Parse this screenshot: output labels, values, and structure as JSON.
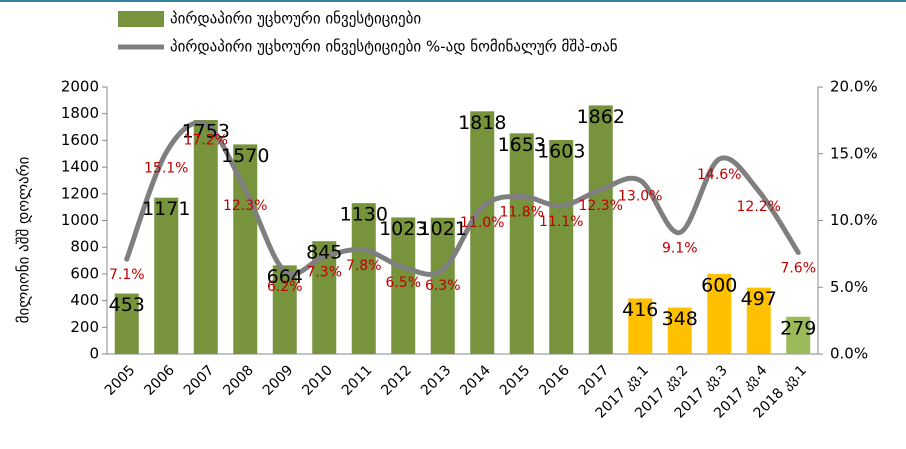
{
  "chart_data": {
    "type": "bar-line",
    "legend": "top",
    "y_label": "მილიონი აშშ დოლარი",
    "categories": [
      "2005",
      "2006",
      "2007",
      "2008",
      "2009",
      "2010",
      "2011",
      "2012",
      "2013",
      "2014",
      "2015",
      "2016",
      "2017",
      "2017 კვ.1",
      "2017 კვ.2",
      "2017 კვ.3",
      "2017 კვ.4",
      "2018 კვ.1"
    ],
    "series": [
      {
        "name": "პირდაპირი უცხოური ინვესტიციები",
        "type": "bar",
        "color": "#77933c",
        "colors": [
          "#77933c",
          "#77933c",
          "#77933c",
          "#77933c",
          "#77933c",
          "#77933c",
          "#77933c",
          "#77933c",
          "#77933c",
          "#77933c",
          "#77933c",
          "#77933c",
          "#77933c",
          "#ffc000",
          "#ffc000",
          "#ffc000",
          "#ffc000",
          "#9bbb59"
        ],
        "values": [
          453,
          1171,
          1753,
          1570,
          664,
          845,
          1130,
          1023,
          1021,
          1818,
          1653,
          1603,
          1862,
          416,
          348,
          600,
          497,
          279
        ]
      },
      {
        "name": "პირდაპირი უცხოური ინვესტიციები %-ად ნომინალურ მშპ-თან",
        "type": "line",
        "axis": "y2",
        "color": "#7f7f7f",
        "label_color": "#c00000",
        "values": [
          7.1,
          15.1,
          17.2,
          12.3,
          6.2,
          7.3,
          7.8,
          6.5,
          6.3,
          11.0,
          11.8,
          11.1,
          12.3,
          13.0,
          9.1,
          14.6,
          12.2,
          7.6
        ],
        "value_labels": [
          "7.1%",
          "15.1%",
          "17.2%",
          "12.3%",
          "6.2%",
          "7.3%",
          "7.8%",
          "6.5%",
          "6.3%",
          "11.0%",
          "11.8%",
          "11.1%",
          "12.3%",
          "13.0%",
          "9.1%",
          "14.6%",
          "12.2%",
          "7.6%"
        ]
      }
    ],
    "ylim": [
      0,
      2000
    ],
    "yticks": [
      0,
      200,
      400,
      600,
      800,
      1000,
      1200,
      1400,
      1600,
      1800,
      2000
    ],
    "y2lim": [
      0,
      20
    ],
    "y2ticks": [
      {
        "value": 0,
        "label": "0.0%"
      },
      {
        "value": 5,
        "label": "5.0%"
      },
      {
        "value": 10,
        "label": "10.0%"
      },
      {
        "value": 15,
        "label": "15.0%"
      },
      {
        "value": 20,
        "label": "20.0%"
      }
    ]
  }
}
